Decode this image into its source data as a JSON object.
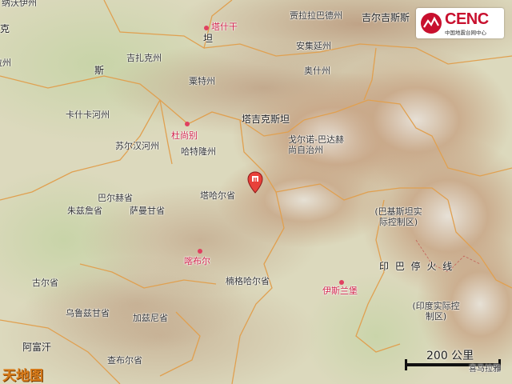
{
  "map": {
    "countries": [
      {
        "key": "tajikistan",
        "name": "塔吉克斯坦"
      },
      {
        "key": "kyrgyzstan",
        "name": "吉尔吉斯斯"
      },
      {
        "key": "afghanistan",
        "name": "阿富汗"
      },
      {
        "key": "uzbekistan",
        "name": "斯"
      },
      {
        "key": "uzbekistan2",
        "name": "坦"
      },
      {
        "key": "india-administered",
        "name": "印 巴 停 火 线"
      },
      {
        "key": "left-edge",
        "name": "克"
      }
    ],
    "cities": [
      {
        "key": "tashkurgan",
        "name": "塔什干"
      },
      {
        "key": "dushanbe",
        "name": "杜尚别"
      },
      {
        "key": "kabul",
        "name": "喀布尔"
      },
      {
        "key": "islamabad",
        "name": "伊斯兰堡"
      }
    ],
    "regions": [
      {
        "key": "jalal-abad",
        "name": "贾拉拉巴德州"
      },
      {
        "key": "andijan",
        "name": "安集延州"
      },
      {
        "key": "osh",
        "name": "奥什州"
      },
      {
        "key": "jizzakh",
        "name": "吉扎克州"
      },
      {
        "key": "sughd",
        "name": "粟特州"
      },
      {
        "key": "kashkadarya",
        "name": "卡什卡河州"
      },
      {
        "key": "surkhandarya",
        "name": "苏尔汉河州"
      },
      {
        "key": "khatlon",
        "name": "哈特隆州"
      },
      {
        "key": "gbao",
        "name": "戈尔诺-巴达赫尚自治州"
      },
      {
        "key": "takhar",
        "name": "塔哈尔省"
      },
      {
        "key": "balkh",
        "name": "巴尔赫省"
      },
      {
        "key": "jowzjan",
        "name": "朱兹詹省"
      },
      {
        "key": "samangan",
        "name": "萨曼甘省"
      },
      {
        "key": "nangarhar",
        "name": "楠格哈尔省"
      },
      {
        "key": "ghor",
        "name": "古尔省"
      },
      {
        "key": "uruzgan",
        "name": "乌鲁兹甘省"
      },
      {
        "key": "ghazni",
        "name": "加兹尼省"
      },
      {
        "key": "zabul",
        "name": "查布尔省"
      },
      {
        "key": "pak-kashmir",
        "name": "(巴基斯坦实际控制区)"
      },
      {
        "key": "ind-kashmir",
        "name": "(印度实际控制区)"
      },
      {
        "key": "navoi",
        "name": "纳沃伊州"
      },
      {
        "key": "bukhara",
        "name": "布哈拉州"
      }
    ],
    "epicenter_marker": "epicenter-pin-icon",
    "scale": {
      "label": "200 公里"
    },
    "watermark": "天地图",
    "bottom_right": "喜马拉雅"
  },
  "logo": {
    "text": "CENC",
    "subtitle": "中国地震台网中心"
  },
  "colors": {
    "lowland": "#d9dcc0",
    "mountain": "#c9a98a",
    "boundary": "#e0a050",
    "marker": "#e8413a",
    "city": "#d0224a"
  }
}
